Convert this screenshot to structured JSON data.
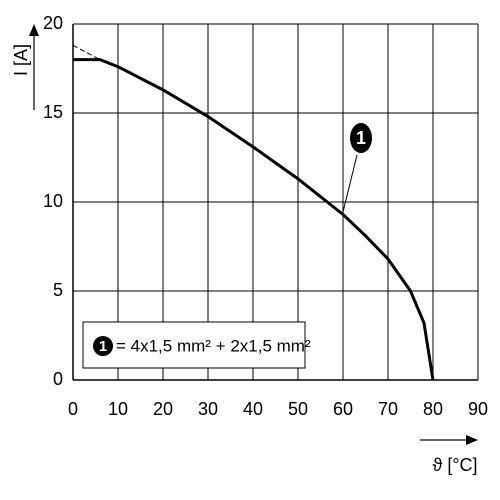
{
  "chart_data": {
    "type": "line",
    "x_label": "ϑ [°C]",
    "y_label": "I [A]",
    "xlim": [
      0,
      90
    ],
    "ylim": [
      0,
      20
    ],
    "xticks": [
      0,
      10,
      20,
      30,
      40,
      50,
      60,
      70,
      80,
      90
    ],
    "yticks": [
      0,
      5,
      10,
      15,
      20
    ],
    "grid": true,
    "series": [
      {
        "color": "#000000",
        "dashed": false,
        "x": [
          0,
          6,
          10,
          20,
          30,
          40,
          50,
          60,
          65,
          70,
          75,
          78,
          80
        ],
        "values": [
          18,
          18,
          17.6,
          16.3,
          14.8,
          13.1,
          11.3,
          9.3,
          8.1,
          6.8,
          5,
          3.2,
          0
        ]
      },
      {
        "color": "#000000",
        "dashed": true,
        "x": [
          0,
          6
        ],
        "values": [
          18.8,
          18
        ]
      }
    ],
    "annotation": {
      "marker": "1",
      "text": "= 4x1,5 mm² + 2x1,5 mm²"
    }
  }
}
